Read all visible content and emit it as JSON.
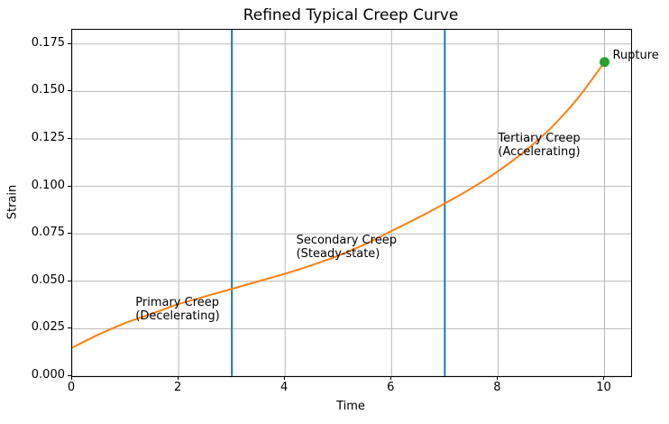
{
  "figure": {
    "title": "Refined Typical Creep Curve",
    "xlabel": "Time",
    "ylabel": "Strain"
  },
  "chart_data": {
    "type": "line",
    "title": "Refined Typical Creep Curve",
    "xlabel": "Time",
    "ylabel": "Strain",
    "xlim": [
      0,
      10.5
    ],
    "ylim": [
      0,
      0.1825
    ],
    "grid": true,
    "legend_position": "none",
    "xticks": [
      {
        "v": 0,
        "label": "0"
      },
      {
        "v": 2,
        "label": "2"
      },
      {
        "v": 4,
        "label": "4"
      },
      {
        "v": 6,
        "label": "6"
      },
      {
        "v": 8,
        "label": "8"
      },
      {
        "v": 10,
        "label": "10"
      }
    ],
    "yticks": [
      {
        "v": 0.0,
        "label": "0.000"
      },
      {
        "v": 0.025,
        "label": "0.025"
      },
      {
        "v": 0.05,
        "label": "0.050"
      },
      {
        "v": 0.075,
        "label": "0.075"
      },
      {
        "v": 0.1,
        "label": "0.100"
      },
      {
        "v": 0.125,
        "label": "0.125"
      },
      {
        "v": 0.15,
        "label": "0.150"
      },
      {
        "v": 0.175,
        "label": "0.175"
      }
    ],
    "series": [
      {
        "name": "creep-strain-curve",
        "color": "#ff7f0e",
        "line_width": 2,
        "x": [
          0,
          0.5,
          1,
          1.5,
          2,
          2.5,
          3,
          3.5,
          4,
          4.5,
          5,
          5.5,
          6,
          6.5,
          7,
          7.5,
          8,
          8.5,
          9,
          9.5,
          10
        ],
        "y": [
          0.015,
          0.022,
          0.028,
          0.033,
          0.038,
          0.042,
          0.046,
          0.05,
          0.054,
          0.0585,
          0.0635,
          0.0695,
          0.0765,
          0.0835,
          0.091,
          0.099,
          0.108,
          0.1185,
          0.131,
          0.1465,
          0.1655
        ]
      }
    ],
    "vlines": [
      {
        "x": 3,
        "color": "#1f77b4",
        "line_width": 2
      },
      {
        "x": 7,
        "color": "#1f77b4",
        "line_width": 2
      }
    ],
    "rupture_marker": {
      "x": 10,
      "y": 0.1655,
      "color": "#2ca02c",
      "radius": 5.5,
      "label": "Rupture"
    },
    "annotations": [
      {
        "id": "primary-creep",
        "x": 1.19,
        "y_top": 0.0425,
        "lines": [
          "Primary Creep",
          "(Decelerating)"
        ]
      },
      {
        "id": "secondary-creep",
        "x": 4.21,
        "y_top": 0.075,
        "lines": [
          "Secondary Creep",
          "(Steady-state)"
        ]
      },
      {
        "id": "tertiary-creep",
        "x": 8.0,
        "y_top": 0.129,
        "lines": [
          "Tertiary Creep",
          "(Accelerating)"
        ]
      }
    ]
  },
  "colors": {
    "curve": "#ff7f0e",
    "phase_boundary": "#1f77b4",
    "rupture": "#2ca02c",
    "grid": "#b8b8b8",
    "axis": "#000000",
    "background": "#ffffff",
    "text": "#000000"
  }
}
